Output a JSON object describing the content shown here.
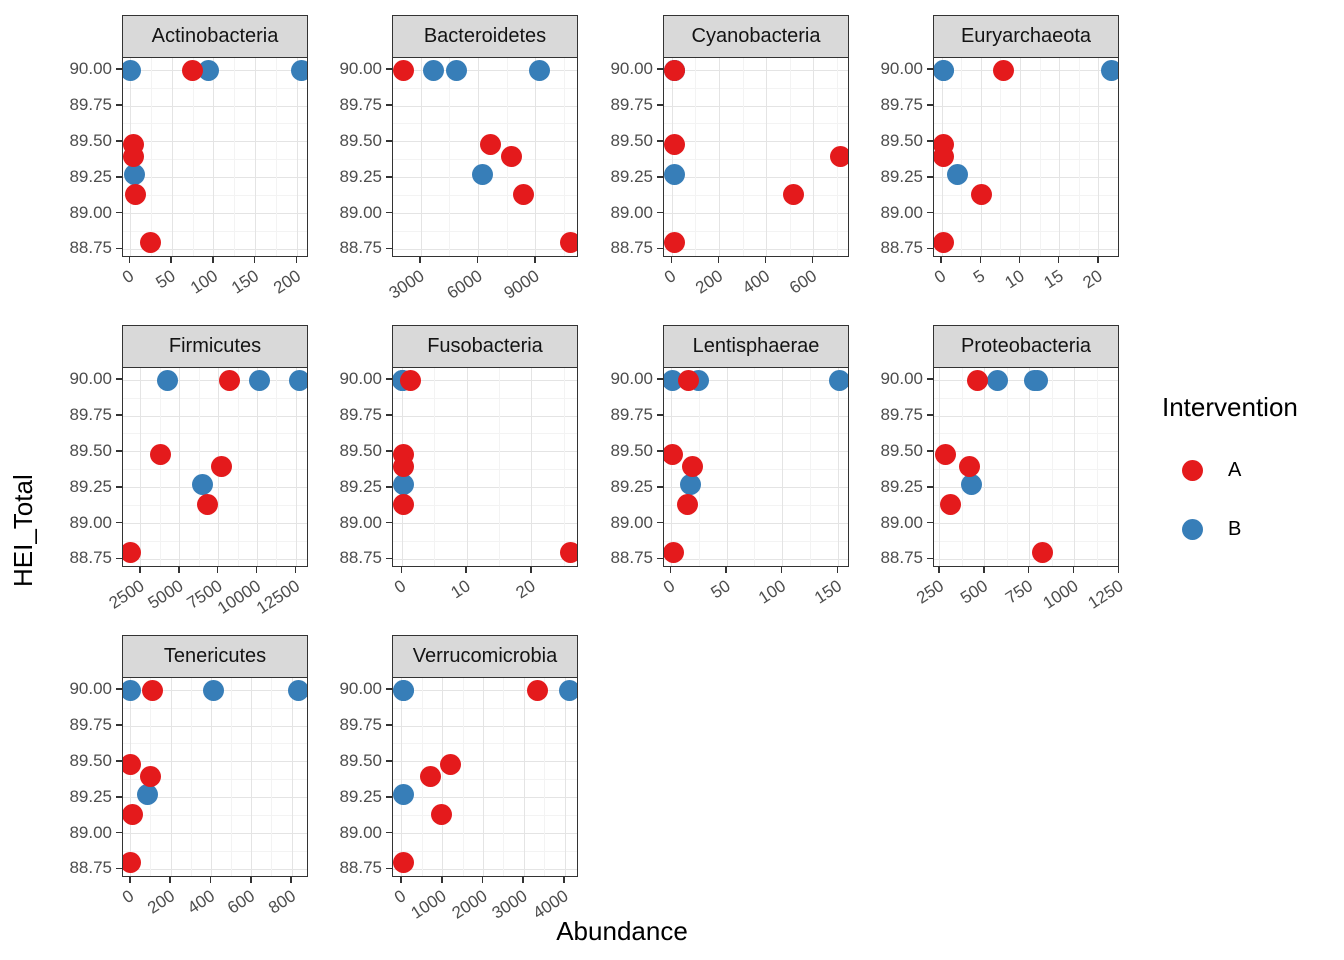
{
  "legend": {
    "title": "Intervention",
    "items": [
      {
        "label": "A",
        "color": "#E41A1C"
      },
      {
        "label": "B",
        "color": "#377EB8"
      }
    ]
  },
  "colors": {
    "strip_fill": "#D9D9D9",
    "panel_border": "#333333",
    "grid_major": "#E4E4E4",
    "grid_minor": "#F3F3F3",
    "axis_text": "#4D4D4D"
  },
  "chart_data": {
    "type": "scatter",
    "x_axis_title": "Abundance",
    "y_axis_title": "HEI_Total",
    "legend_position": "right",
    "grid": true,
    "y_ticks": [
      90.0,
      89.75,
      89.5,
      89.25,
      89.0,
      88.75
    ],
    "y_tick_labels": [
      "90.00",
      "89.75",
      "89.50",
      "89.25",
      "89.00",
      "88.75"
    ],
    "y_range": [
      88.69,
      90.085
    ],
    "series": [
      {
        "name": "A",
        "color": "#E41A1C"
      },
      {
        "name": "B",
        "color": "#377EB8"
      }
    ],
    "facets": [
      {
        "name": "Actinobacteria",
        "x_ticks": [
          0,
          50,
          100,
          150,
          200
        ],
        "x_tick_labels": [
          "0",
          "50",
          "100",
          "150",
          "200"
        ],
        "x_range": [
          -9,
          214
        ],
        "points": [
          {
            "x": 0,
            "y": 90.0,
            "g": "B"
          },
          {
            "x": 93,
            "y": 90.0,
            "g": "B"
          },
          {
            "x": 205,
            "y": 90.0,
            "g": "B"
          },
          {
            "x": 5,
            "y": 89.27,
            "g": "B"
          },
          {
            "x": 74,
            "y": 90.0,
            "g": "A"
          },
          {
            "x": 4,
            "y": 89.48,
            "g": "A"
          },
          {
            "x": 4,
            "y": 89.4,
            "g": "A"
          },
          {
            "x": 6,
            "y": 89.13,
            "g": "A"
          },
          {
            "x": 24,
            "y": 88.8,
            "g": "A"
          }
        ]
      },
      {
        "name": "Bacteroidetes",
        "x_ticks": [
          3000,
          6000,
          9000
        ],
        "x_tick_labels": [
          "3000",
          "6000",
          "9000"
        ],
        "x_range": [
          1520,
          11260
        ],
        "points": [
          {
            "x": 3640,
            "y": 90.0,
            "g": "B"
          },
          {
            "x": 4830,
            "y": 90.0,
            "g": "B"
          },
          {
            "x": 9170,
            "y": 90.0,
            "g": "B"
          },
          {
            "x": 6210,
            "y": 89.27,
            "g": "B"
          },
          {
            "x": 2045,
            "y": 90.0,
            "g": "A"
          },
          {
            "x": 6600,
            "y": 89.48,
            "g": "A"
          },
          {
            "x": 7740,
            "y": 89.4,
            "g": "A"
          },
          {
            "x": 8350,
            "y": 89.13,
            "g": "A"
          },
          {
            "x": 10800,
            "y": 88.8,
            "g": "A"
          }
        ]
      },
      {
        "name": "Cyanobacteria",
        "x_ticks": [
          0,
          200,
          400,
          600
        ],
        "x_tick_labels": [
          "0",
          "200",
          "400",
          "600"
        ],
        "x_range": [
          -36,
          755
        ],
        "points": [
          {
            "x": 10,
            "y": 90.0,
            "g": "B"
          },
          {
            "x": 10,
            "y": 90.0,
            "g": "B"
          },
          {
            "x": 10,
            "y": 90.0,
            "g": "B"
          },
          {
            "x": 8,
            "y": 89.27,
            "g": "B"
          },
          {
            "x": 10,
            "y": 90.0,
            "g": "A"
          },
          {
            "x": 8,
            "y": 89.48,
            "g": "A"
          },
          {
            "x": 713,
            "y": 89.4,
            "g": "A"
          },
          {
            "x": 513,
            "y": 89.13,
            "g": "A"
          },
          {
            "x": 8,
            "y": 88.8,
            "g": "A"
          }
        ]
      },
      {
        "name": "Euryarchaeota",
        "x_ticks": [
          0,
          5,
          10,
          15,
          20
        ],
        "x_tick_labels": [
          "0",
          "5",
          "10",
          "15",
          "20"
        ],
        "x_range": [
          -1.05,
          22.7
        ],
        "points": [
          {
            "x": 0.2,
            "y": 90.0,
            "g": "B"
          },
          {
            "x": 0.2,
            "y": 90.0,
            "g": "B"
          },
          {
            "x": 21.6,
            "y": 90.0,
            "g": "B"
          },
          {
            "x": 1.9,
            "y": 89.27,
            "g": "B"
          },
          {
            "x": 7.8,
            "y": 90.0,
            "g": "A"
          },
          {
            "x": 0.1,
            "y": 89.48,
            "g": "A"
          },
          {
            "x": 0.2,
            "y": 89.4,
            "g": "A"
          },
          {
            "x": 5,
            "y": 89.13,
            "g": "A"
          },
          {
            "x": 0.1,
            "y": 88.8,
            "g": "A"
          }
        ]
      },
      {
        "name": "Firmicutes",
        "x_ticks": [
          2500,
          5000,
          7500,
          10000,
          12500
        ],
        "x_tick_labels": [
          "2500",
          "5000",
          "7500",
          "10000",
          "12500"
        ],
        "x_range": [
          1345,
          13310
        ],
        "points": [
          {
            "x": 4180,
            "y": 90.0,
            "g": "B"
          },
          {
            "x": 10110,
            "y": 90.0,
            "g": "B"
          },
          {
            "x": 12720,
            "y": 90.0,
            "g": "B"
          },
          {
            "x": 6480,
            "y": 89.27,
            "g": "B"
          },
          {
            "x": 8190,
            "y": 90.0,
            "g": "A"
          },
          {
            "x": 3760,
            "y": 89.48,
            "g": "A"
          },
          {
            "x": 7700,
            "y": 89.4,
            "g": "A"
          },
          {
            "x": 6790,
            "y": 89.13,
            "g": "A"
          },
          {
            "x": 1850,
            "y": 88.8,
            "g": "A"
          }
        ]
      },
      {
        "name": "Fusobacteria",
        "x_ticks": [
          0,
          10,
          20
        ],
        "x_tick_labels": [
          "0",
          "10",
          "20"
        ],
        "x_range": [
          -1.45,
          27.3
        ],
        "points": [
          {
            "x": 0,
            "y": 90.0,
            "g": "B"
          },
          {
            "x": 0,
            "y": 90.0,
            "g": "B"
          },
          {
            "x": 0,
            "y": 90.0,
            "g": "B"
          },
          {
            "x": 0.2,
            "y": 89.27,
            "g": "B"
          },
          {
            "x": 1.2,
            "y": 90.0,
            "g": "A"
          },
          {
            "x": 0.2,
            "y": 89.48,
            "g": "A"
          },
          {
            "x": 0.2,
            "y": 89.4,
            "g": "A"
          },
          {
            "x": 0.2,
            "y": 89.13,
            "g": "A"
          },
          {
            "x": 26,
            "y": 88.8,
            "g": "A"
          }
        ]
      },
      {
        "name": "Lentisphaerae",
        "x_ticks": [
          0,
          50,
          100,
          150
        ],
        "x_tick_labels": [
          "0",
          "50",
          "100",
          "150"
        ],
        "x_range": [
          -6.6,
          160.5
        ],
        "points": [
          {
            "x": 1,
            "y": 90.0,
            "g": "B"
          },
          {
            "x": 24.7,
            "y": 90.0,
            "g": "B"
          },
          {
            "x": 151.5,
            "y": 90.0,
            "g": "B"
          },
          {
            "x": 17.3,
            "y": 89.27,
            "g": "B"
          },
          {
            "x": 15.7,
            "y": 90.0,
            "g": "A"
          },
          {
            "x": 1,
            "y": 89.48,
            "g": "A"
          },
          {
            "x": 18.8,
            "y": 89.4,
            "g": "A"
          },
          {
            "x": 14.3,
            "y": 89.13,
            "g": "A"
          },
          {
            "x": 1.8,
            "y": 88.8,
            "g": "A"
          }
        ]
      },
      {
        "name": "Proteobacteria",
        "x_ticks": [
          250,
          500,
          750,
          1000,
          1250
        ],
        "x_tick_labels": [
          "250",
          "500",
          "750",
          "1000",
          "1250"
        ],
        "x_range": [
          217,
          1253
        ],
        "points": [
          {
            "x": 570,
            "y": 90.0,
            "g": "B"
          },
          {
            "x": 775,
            "y": 90.0,
            "g": "B"
          },
          {
            "x": 795,
            "y": 90.0,
            "g": "B"
          },
          {
            "x": 426,
            "y": 89.27,
            "g": "B"
          },
          {
            "x": 460,
            "y": 90.0,
            "g": "A"
          },
          {
            "x": 283,
            "y": 89.48,
            "g": "A"
          },
          {
            "x": 415,
            "y": 89.4,
            "g": "A"
          },
          {
            "x": 310,
            "y": 89.13,
            "g": "A"
          },
          {
            "x": 821,
            "y": 88.8,
            "g": "A"
          }
        ]
      },
      {
        "name": "Tenericutes",
        "x_ticks": [
          0,
          200,
          400,
          600,
          800
        ],
        "x_tick_labels": [
          "0",
          "200",
          "400",
          "600",
          "800"
        ],
        "x_range": [
          -38.5,
          883.5
        ],
        "points": [
          {
            "x": 0,
            "y": 90.0,
            "g": "B"
          },
          {
            "x": 411,
            "y": 90.0,
            "g": "B"
          },
          {
            "x": 833,
            "y": 90.0,
            "g": "B"
          },
          {
            "x": 83,
            "y": 89.27,
            "g": "B"
          },
          {
            "x": 108,
            "y": 90.0,
            "g": "A"
          },
          {
            "x": 0,
            "y": 89.48,
            "g": "A"
          },
          {
            "x": 100,
            "y": 89.4,
            "g": "A"
          },
          {
            "x": 8.5,
            "y": 89.13,
            "g": "A"
          },
          {
            "x": 0,
            "y": 88.8,
            "g": "A"
          }
        ]
      },
      {
        "name": "Verrucomicrobia",
        "x_ticks": [
          0,
          1000,
          2000,
          3000,
          4000
        ],
        "x_tick_labels": [
          "0",
          "1000",
          "2000",
          "3000",
          "4000"
        ],
        "x_range": [
          -220,
          4342
        ],
        "points": [
          {
            "x": 30,
            "y": 90.0,
            "g": "B"
          },
          {
            "x": 30,
            "y": 90.0,
            "g": "B"
          },
          {
            "x": 4100,
            "y": 90.0,
            "g": "B"
          },
          {
            "x": 25,
            "y": 89.27,
            "g": "B"
          },
          {
            "x": 3330,
            "y": 90.0,
            "g": "A"
          },
          {
            "x": 1200,
            "y": 89.48,
            "g": "A"
          },
          {
            "x": 690,
            "y": 89.4,
            "g": "A"
          },
          {
            "x": 960,
            "y": 89.13,
            "g": "A"
          },
          {
            "x": 25,
            "y": 88.8,
            "g": "A"
          }
        ]
      }
    ]
  }
}
